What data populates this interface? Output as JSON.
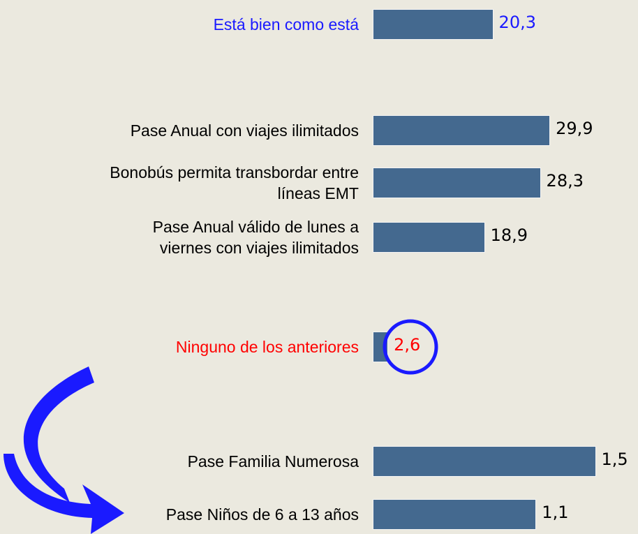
{
  "chart_data": [
    {
      "type": "bar",
      "orientation": "horizontal",
      "categories": [
        "Está bien como está",
        "Pase Anual con viajes ilimitados",
        "Bonobús permita transbordar entre\nlíneas EMT",
        "Pase Anual válido de lunes a\nviernes con viajes ilimitados",
        "Ninguno de los anteriores"
      ],
      "values": [
        20.3,
        29.9,
        28.3,
        18.9,
        2.6
      ],
      "value_labels": [
        "20,3",
        "29,9",
        "28,3",
        "18,9",
        "2,6"
      ],
      "color": "#44698f",
      "label_colors": [
        "#1a1aff",
        "#000000",
        "#000000",
        "#000000",
        "#ff0000"
      ]
    },
    {
      "type": "bar",
      "orientation": "horizontal",
      "categories": [
        "Pase Familia Numerosa",
        "Pase Niños de 6 a 13 años"
      ],
      "values": [
        1.5,
        1.1
      ],
      "value_labels": [
        "1,5",
        "1,1"
      ],
      "color": "#44698f",
      "label_colors": [
        "#000000",
        "#000000"
      ]
    }
  ]
}
